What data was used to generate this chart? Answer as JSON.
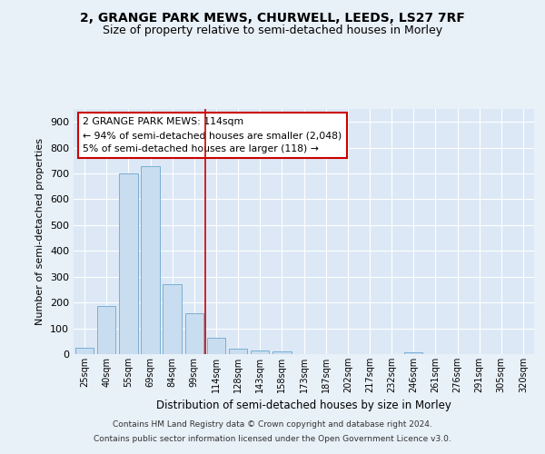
{
  "title_line1": "2, GRANGE PARK MEWS, CHURWELL, LEEDS, LS27 7RF",
  "title_line2": "Size of property relative to semi-detached houses in Morley",
  "xlabel": "Distribution of semi-detached houses by size in Morley",
  "ylabel": "Number of semi-detached properties",
  "categories": [
    "25sqm",
    "40sqm",
    "55sqm",
    "69sqm",
    "84sqm",
    "99sqm",
    "114sqm",
    "128sqm",
    "143sqm",
    "158sqm",
    "173sqm",
    "187sqm",
    "202sqm",
    "217sqm",
    "232sqm",
    "246sqm",
    "261sqm",
    "276sqm",
    "291sqm",
    "305sqm",
    "320sqm"
  ],
  "values": [
    25,
    185,
    700,
    730,
    270,
    160,
    65,
    20,
    13,
    10,
    0,
    0,
    0,
    0,
    0,
    8,
    0,
    0,
    0,
    0,
    0
  ],
  "bar_color": "#c9ddf0",
  "bar_edge_color": "#7aafd4",
  "vline_x": 5.5,
  "vline_color": "#cc0000",
  "annotation_line1": "2 GRANGE PARK MEWS: 114sqm",
  "annotation_line2": "← 94% of semi-detached houses are smaller (2,048)",
  "annotation_line3": "5% of semi-detached houses are larger (118) →",
  "annotation_box_color": "#cc0000",
  "ylim": [
    0,
    950
  ],
  "yticks": [
    0,
    100,
    200,
    300,
    400,
    500,
    600,
    700,
    800,
    900
  ],
  "footer_line1": "Contains HM Land Registry data © Crown copyright and database right 2024.",
  "footer_line2": "Contains public sector information licensed under the Open Government Licence v3.0.",
  "background_color": "#e8f0f8",
  "plot_background_color": "#dce8f5",
  "grid_color": "#ffffff",
  "title1_fontsize": 10,
  "title2_fontsize": 9
}
